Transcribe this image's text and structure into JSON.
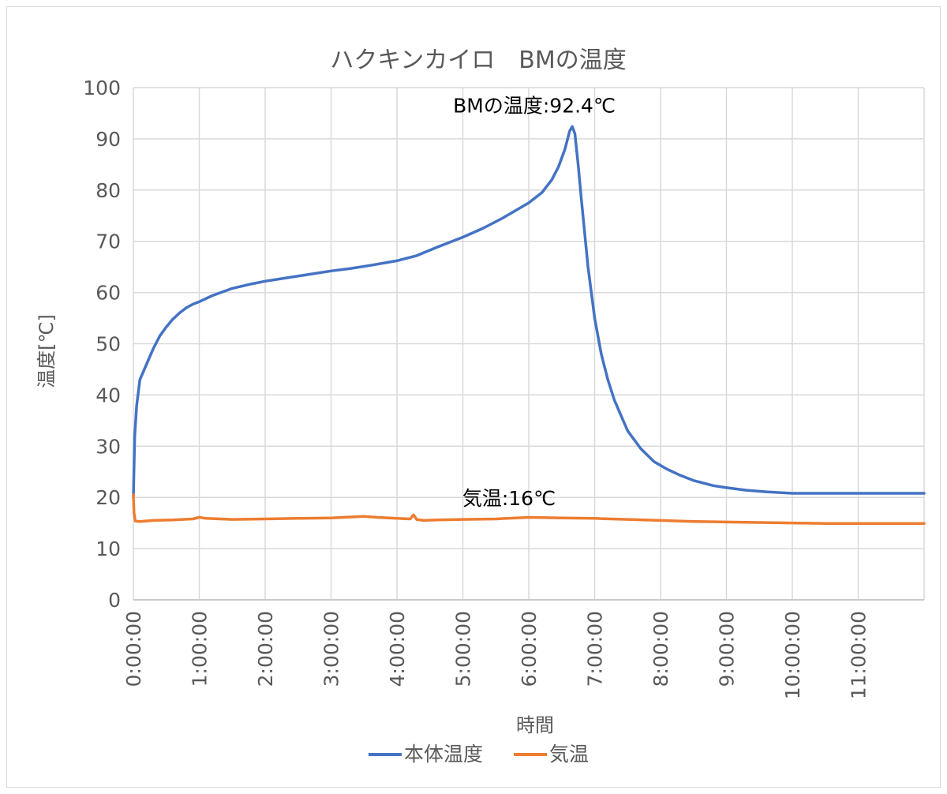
{
  "chart_data": {
    "type": "line",
    "title": "ハクキンカイロ　BMの温度",
    "xlabel": "時間",
    "ylabel": "温度[℃]",
    "ylim": [
      0,
      100
    ],
    "yticks": [
      "0",
      "10",
      "20",
      "30",
      "40",
      "50",
      "60",
      "70",
      "80",
      "90",
      "100"
    ],
    "xlim_hours": [
      0,
      12
    ],
    "xticks": [
      "0:00:00",
      "1:00:00",
      "2:00:00",
      "3:00:00",
      "4:00:00",
      "5:00:00",
      "6:00:00",
      "7:00:00",
      "8:00:00",
      "9:00:00",
      "10:00:00",
      "11:00:00"
    ],
    "grid": true,
    "legend_position": "bottom",
    "series": [
      {
        "name": "本体温度",
        "color": "#4472C4",
        "x_hours": [
          0,
          0.02,
          0.05,
          0.1,
          0.2,
          0.3,
          0.4,
          0.5,
          0.6,
          0.7,
          0.8,
          0.9,
          1.0,
          1.2,
          1.5,
          1.8,
          2.0,
          2.3,
          2.6,
          3.0,
          3.3,
          3.6,
          4.0,
          4.3,
          4.6,
          5.0,
          5.3,
          5.6,
          6.0,
          6.2,
          6.35,
          6.45,
          6.55,
          6.62,
          6.66,
          6.7,
          6.75,
          6.8,
          6.9,
          7.0,
          7.1,
          7.2,
          7.3,
          7.5,
          7.7,
          7.9,
          8.1,
          8.3,
          8.5,
          8.8,
          9.0,
          9.3,
          9.6,
          10.0,
          10.3,
          11.0,
          12.0
        ],
        "y_values": [
          20,
          32,
          38,
          43,
          46,
          49,
          51.5,
          53.3,
          54.8,
          56,
          57,
          57.7,
          58.2,
          59.4,
          60.8,
          61.7,
          62.2,
          62.8,
          63.4,
          64.2,
          64.7,
          65.3,
          66.2,
          67.2,
          68.8,
          70.8,
          72.5,
          74.5,
          77.5,
          79.5,
          82,
          84.5,
          88,
          91.5,
          92.4,
          91,
          85,
          78,
          65,
          55,
          48,
          43,
          39,
          33,
          29.5,
          27,
          25.5,
          24.3,
          23.3,
          22.3,
          21.9,
          21.4,
          21.1,
          20.8,
          20.8,
          20.8,
          20.8
        ]
      },
      {
        "name": "気温",
        "color": "#ED7D31",
        "x_hours": [
          0,
          0.01,
          0.03,
          0.1,
          0.3,
          0.6,
          0.9,
          1.0,
          1.1,
          1.5,
          2.0,
          2.5,
          3.0,
          3.5,
          3.7,
          4.0,
          4.2,
          4.25,
          4.3,
          4.4,
          4.6,
          5.0,
          5.5,
          6.0,
          6.5,
          7.0,
          7.5,
          8.0,
          8.5,
          9.0,
          9.5,
          10.0,
          10.5,
          11.0,
          12.0
        ],
        "y_values": [
          20.5,
          17,
          15.4,
          15.3,
          15.5,
          15.6,
          15.8,
          16.1,
          15.9,
          15.7,
          15.8,
          15.9,
          16.0,
          16.3,
          16.1,
          15.9,
          15.8,
          16.6,
          15.7,
          15.5,
          15.6,
          15.7,
          15.8,
          16.1,
          16.0,
          15.9,
          15.7,
          15.5,
          15.3,
          15.2,
          15.1,
          15.0,
          14.9,
          14.9,
          14.9
        ]
      }
    ],
    "annotations": [
      {
        "text": "BMの温度:92.4℃",
        "x_hours": 6.66,
        "y": 92.4
      },
      {
        "text": "気温:16℃",
        "x_hours": 6.0,
        "y": 16.0
      }
    ]
  }
}
